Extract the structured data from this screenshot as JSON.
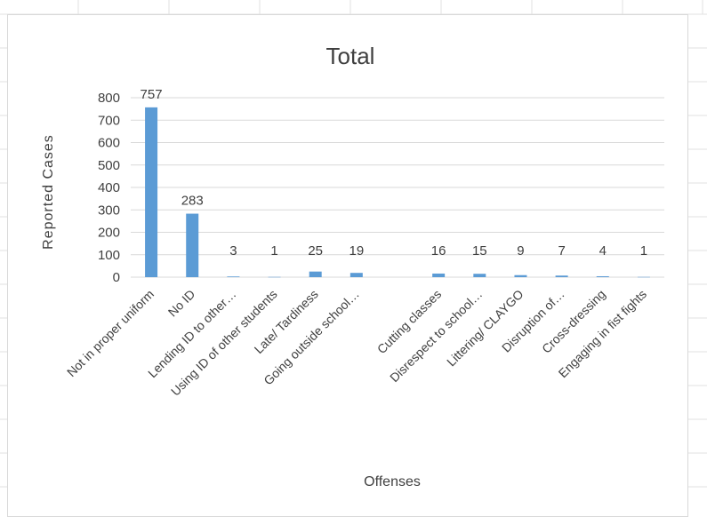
{
  "chart_data": {
    "type": "bar",
    "title": "Total",
    "xlabel": "Offenses",
    "ylabel": "Reported Cases",
    "ylim": [
      0,
      800
    ],
    "yticks": [
      0,
      100,
      200,
      300,
      400,
      500,
      600,
      700,
      800
    ],
    "categories": [
      "Not in proper uniform",
      "No ID",
      "Lending ID to other…",
      "Using ID of other students",
      "Late/ Tardiness",
      "Going outside school…",
      "",
      "Cutting classes",
      "Disrespect to school…",
      "Littering/ CLAYGO",
      "Disruption of…",
      "Cross-dressing",
      "Engaging in fist fights"
    ],
    "values": [
      757,
      283,
      3,
      1,
      25,
      19,
      null,
      16,
      15,
      9,
      7,
      4,
      1
    ],
    "grid": true,
    "legend": "none",
    "bar_color": "#5b9bd5"
  }
}
